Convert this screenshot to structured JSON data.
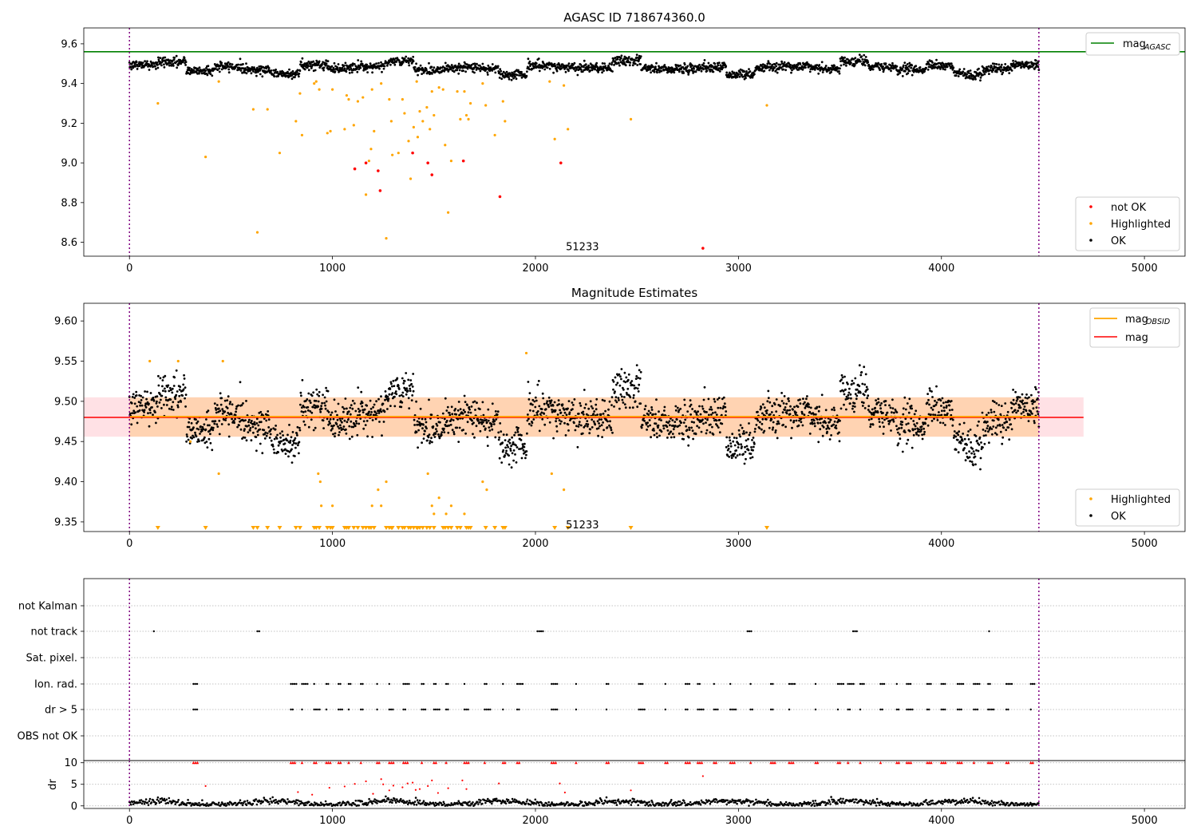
{
  "chart_data": [
    {
      "type": "scatter",
      "title": "AGASC ID 718674360.0",
      "xlim": [
        -225,
        5200
      ],
      "ylim": [
        8.53,
        9.68
      ],
      "xticks": [
        0,
        1000,
        2000,
        3000,
        4000,
        5000
      ],
      "yticks": [
        "8.6",
        "8.8",
        "9.0",
        "9.2",
        "9.4",
        "9.6"
      ],
      "legend_upper": {
        "position": "top-right",
        "mag_agasc_label": "mag",
        "mag_agasc_sub": "AGASC"
      },
      "legend_lower": {
        "position": "bottom-right",
        "labels": [
          "not OK",
          "Highlighted",
          "OK"
        ]
      },
      "mag_agasc": 9.56,
      "obs_boundaries": [
        0,
        4480
      ],
      "annotation": {
        "text": "51233",
        "x": 2150,
        "y": 8.56
      },
      "series": [
        {
          "name": "OK",
          "color": "#000000",
          "baseline": 9.48,
          "x_range": [
            0,
            4480
          ],
          "count": 2300
        },
        {
          "name": "Highlighted",
          "color": "#ffa500",
          "points": [
            [
              140,
              9.3
            ],
            [
              375,
              9.03
            ],
            [
              440,
              9.41
            ],
            [
              610,
              9.27
            ],
            [
              630,
              8.65
            ],
            [
              680,
              9.27
            ],
            [
              740,
              9.05
            ],
            [
              820,
              9.21
            ],
            [
              840,
              9.35
            ],
            [
              850,
              9.14
            ],
            [
              910,
              9.4
            ],
            [
              920,
              9.41
            ],
            [
              935,
              9.37
            ],
            [
              975,
              9.15
            ],
            [
              990,
              9.16
            ],
            [
              1000,
              9.37
            ],
            [
              1060,
              9.17
            ],
            [
              1070,
              9.34
            ],
            [
              1080,
              9.32
            ],
            [
              1105,
              9.19
            ],
            [
              1125,
              9.31
            ],
            [
              1150,
              9.33
            ],
            [
              1165,
              8.84
            ],
            [
              1180,
              9.01
            ],
            [
              1190,
              9.07
            ],
            [
              1195,
              9.37
            ],
            [
              1205,
              9.16
            ],
            [
              1240,
              9.4
            ],
            [
              1265,
              8.62
            ],
            [
              1280,
              9.32
            ],
            [
              1290,
              9.21
            ],
            [
              1295,
              9.04
            ],
            [
              1325,
              9.05
            ],
            [
              1345,
              9.32
            ],
            [
              1355,
              9.25
            ],
            [
              1375,
              9.11
            ],
            [
              1385,
              8.92
            ],
            [
              1400,
              9.18
            ],
            [
              1415,
              9.41
            ],
            [
              1420,
              9.13
            ],
            [
              1430,
              9.26
            ],
            [
              1445,
              9.21
            ],
            [
              1465,
              9.28
            ],
            [
              1480,
              9.17
            ],
            [
              1490,
              9.36
            ],
            [
              1500,
              9.24
            ],
            [
              1525,
              9.38
            ],
            [
              1545,
              9.37
            ],
            [
              1555,
              9.09
            ],
            [
              1570,
              8.75
            ],
            [
              1585,
              9.01
            ],
            [
              1615,
              9.36
            ],
            [
              1630,
              9.22
            ],
            [
              1650,
              9.36
            ],
            [
              1660,
              9.24
            ],
            [
              1670,
              9.22
            ],
            [
              1680,
              9.3
            ],
            [
              1740,
              9.4
            ],
            [
              1755,
              9.29
            ],
            [
              1800,
              9.14
            ],
            [
              1840,
              9.31
            ],
            [
              1850,
              9.21
            ],
            [
              2070,
              9.41
            ],
            [
              2095,
              9.12
            ],
            [
              2140,
              9.39
            ],
            [
              2160,
              9.17
            ],
            [
              2470,
              9.22
            ],
            [
              3140,
              9.29
            ]
          ]
        },
        {
          "name": "not OK",
          "color": "#ff0000",
          "points": [
            [
              1110,
              8.97
            ],
            [
              1165,
              9.0
            ],
            [
              1225,
              8.96
            ],
            [
              1235,
              8.86
            ],
            [
              1395,
              9.05
            ],
            [
              1470,
              9.0
            ],
            [
              1490,
              8.94
            ],
            [
              1645,
              9.01
            ],
            [
              1825,
              8.83
            ],
            [
              2125,
              9.0
            ],
            [
              2825,
              8.57
            ]
          ]
        }
      ]
    },
    {
      "type": "scatter",
      "title": "Magnitude Estimates",
      "xlim": [
        -225,
        5200
      ],
      "ylim": [
        9.338,
        9.622
      ],
      "xticks": [
        0,
        1000,
        2000,
        3000,
        4000,
        5000
      ],
      "yticks": [
        "9.35",
        "9.40",
        "9.45",
        "9.50",
        "9.55",
        "9.60"
      ],
      "legend_upper": {
        "position": "top-right",
        "mag_obsid_label": "mag",
        "mag_obsid_sub": "OBSID",
        "mag_label": "mag"
      },
      "legend_lower": {
        "position": "bottom-right",
        "labels": [
          "Highlighted",
          "OK"
        ]
      },
      "mag": 9.48,
      "mag_band": [
        9.456,
        9.505
      ],
      "mag_band_xrange": [
        -225,
        4700
      ],
      "mag_obsid_band_xrange": [
        0,
        4480
      ],
      "annotation": {
        "text": "51233",
        "x": 2150,
        "y": 9.342
      },
      "highlighted_points": [
        [
          100,
          9.55
        ],
        [
          240,
          9.55
        ],
        [
          300,
          9.45
        ],
        [
          440,
          9.41
        ],
        [
          460,
          9.55
        ],
        [
          930,
          9.41
        ],
        [
          940,
          9.4
        ],
        [
          945,
          9.37
        ],
        [
          1000,
          9.37
        ],
        [
          1195,
          9.37
        ],
        [
          1225,
          9.39
        ],
        [
          1240,
          9.37
        ],
        [
          1265,
          9.4
        ],
        [
          1470,
          9.41
        ],
        [
          1490,
          9.37
        ],
        [
          1500,
          9.36
        ],
        [
          1525,
          9.38
        ],
        [
          1560,
          9.36
        ],
        [
          1585,
          9.37
        ],
        [
          1650,
          9.36
        ],
        [
          1740,
          9.4
        ],
        [
          1760,
          9.39
        ],
        [
          1955,
          9.56
        ],
        [
          2080,
          9.41
        ],
        [
          2140,
          9.39
        ]
      ],
      "clipped_markers_x": [
        140,
        375,
        610,
        630,
        680,
        740,
        820,
        840,
        910,
        920,
        935,
        975,
        990,
        1000,
        1060,
        1070,
        1080,
        1105,
        1125,
        1150,
        1165,
        1180,
        1190,
        1205,
        1265,
        1280,
        1290,
        1295,
        1325,
        1345,
        1355,
        1375,
        1385,
        1400,
        1415,
        1420,
        1430,
        1445,
        1465,
        1480,
        1500,
        1545,
        1555,
        1570,
        1585,
        1615,
        1630,
        1660,
        1670,
        1680,
        1755,
        1800,
        1840,
        1850,
        2095,
        2160,
        2470,
        3140
      ]
    },
    {
      "type": "scatter",
      "title": "",
      "xlim": [
        -225,
        5200
      ],
      "xticks": [
        0,
        1000,
        2000,
        3000,
        4000,
        5000
      ],
      "categories": [
        "not Kalman",
        "not track",
        "Sat. pixel.",
        "Ion. rad.",
        "dr > 5",
        "OBS not OK"
      ],
      "flag_clusters": {
        "not track": [
          120,
          630,
          2010,
          3045,
          3565,
          4235
        ],
        "Ion. rad.": [
          315,
          795,
          850,
          910,
          970,
          1030,
          1080,
          1140,
          1220,
          1280,
          1350,
          1440,
          1500,
          1560,
          1650,
          1750,
          1840,
          1910,
          2080,
          2200,
          2350,
          2510,
          2640,
          2740,
          2800,
          2880,
          2960,
          3060,
          3160,
          3250,
          3380,
          3490,
          3540,
          3600,
          3700,
          3780,
          3830,
          3930,
          4000,
          4080,
          4160,
          4230,
          4320,
          4440
        ],
        "dr > 5": [
          315,
          795,
          850,
          910,
          970,
          1030,
          1080,
          1140,
          1220,
          1280,
          1350,
          1440,
          1500,
          1560,
          1650,
          1750,
          1840,
          1910,
          2080,
          2200,
          2350,
          2510,
          2640,
          2740,
          2800,
          2880,
          2960,
          3060,
          3160,
          3250,
          3380,
          3490,
          3540,
          3600,
          3700,
          3780,
          3830,
          3930,
          4000,
          4080,
          4160,
          4230,
          4320,
          4440
        ]
      }
    },
    {
      "type": "scatter",
      "title": "",
      "ylabel": "dr",
      "xlim": [
        -225,
        5200
      ],
      "ylim": [
        -0.6,
        10.5
      ],
      "xticks": [
        "0",
        "1000",
        "2000",
        "3000",
        "4000",
        "5000"
      ],
      "yticks": [
        "0",
        "5",
        "10"
      ],
      "dr_clip": 10,
      "red_points": [
        [
          375,
          4.6
        ],
        [
          830,
          3.2
        ],
        [
          900,
          2.6
        ],
        [
          985,
          4.2
        ],
        [
          1060,
          4.5
        ],
        [
          1110,
          5.1
        ],
        [
          1165,
          5.7
        ],
        [
          1200,
          2.8
        ],
        [
          1240,
          6.2
        ],
        [
          1250,
          5.0
        ],
        [
          1280,
          3.6
        ],
        [
          1300,
          4.7
        ],
        [
          1345,
          4.3
        ],
        [
          1370,
          5.2
        ],
        [
          1395,
          5.4
        ],
        [
          1410,
          3.7
        ],
        [
          1430,
          3.9
        ],
        [
          1470,
          4.6
        ],
        [
          1490,
          5.9
        ],
        [
          1520,
          3.0
        ],
        [
          1570,
          4.1
        ],
        [
          1640,
          5.9
        ],
        [
          1660,
          3.9
        ],
        [
          1820,
          5.2
        ],
        [
          2120,
          5.2
        ],
        [
          2145,
          3.1
        ],
        [
          2470,
          3.6
        ],
        [
          2825,
          6.9
        ]
      ]
    }
  ]
}
